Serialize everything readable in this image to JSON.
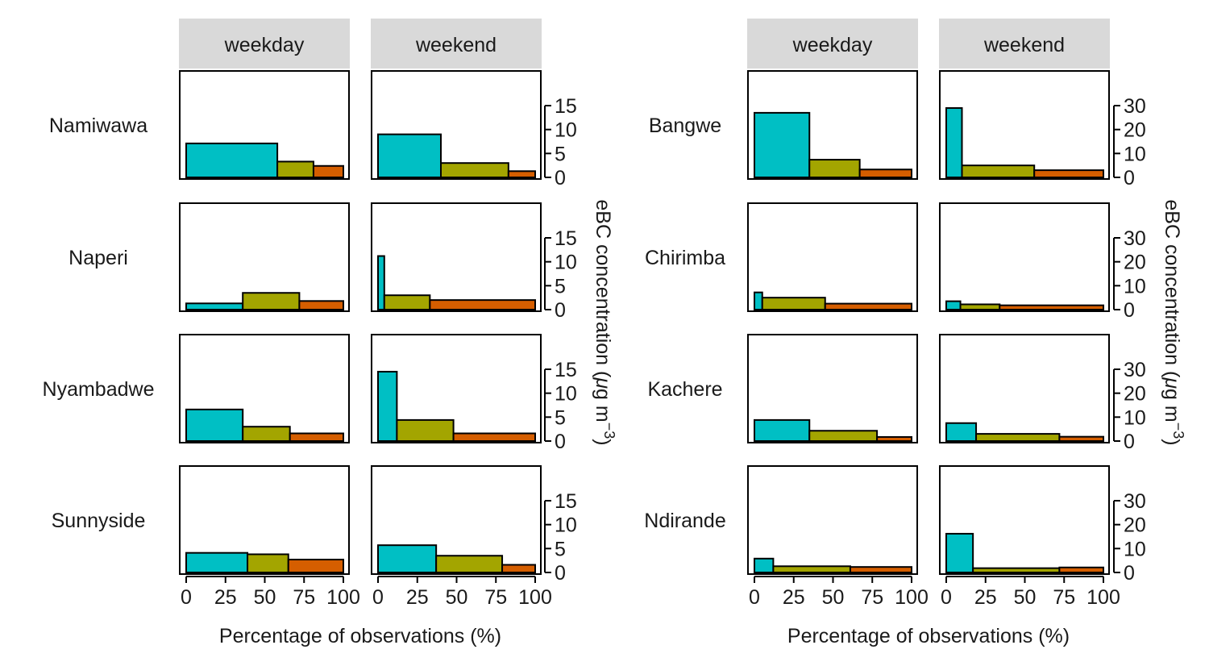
{
  "chart_data": [
    {
      "type": "bar",
      "title": "",
      "xlabel": "Percentage of observations (%)",
      "ylabel": "eBC concentration (µg m⁻³)",
      "ylabel_parts": {
        "main": "eBC concentration (",
        "mu": "μ",
        "rest": "g m",
        "sup": "−3",
        "close": ")"
      },
      "facet_columns": [
        "weekday",
        "weekend"
      ],
      "xlim": [
        0,
        100
      ],
      "x_ticks": [
        "0",
        "25",
        "50",
        "75",
        "100"
      ],
      "ylim": [
        0,
        15
      ],
      "y_ticks": [
        "0",
        "5",
        "10",
        "15"
      ],
      "y_tick_values": [
        0,
        5,
        10,
        15
      ],
      "rows": [
        {
          "name": "Namiwawa",
          "weekday": [
            {
              "width": 58,
              "height": 7.1,
              "color": "#00BFC4"
            },
            {
              "width": 23,
              "height": 3.3,
              "color": "#A3A500"
            },
            {
              "width": 19,
              "height": 2.4,
              "color": "#D55E00"
            }
          ],
          "weekend": [
            {
              "width": 40,
              "height": 9.0,
              "color": "#00BFC4"
            },
            {
              "width": 43,
              "height": 3.0,
              "color": "#A3A500"
            },
            {
              "width": 17,
              "height": 1.3,
              "color": "#D55E00"
            }
          ]
        },
        {
          "name": "Naperi",
          "weekday": [
            {
              "width": 36,
              "height": 1.3,
              "color": "#00BFC4"
            },
            {
              "width": 36,
              "height": 3.5,
              "color": "#A3A500"
            },
            {
              "width": 28,
              "height": 1.8,
              "color": "#D55E00"
            }
          ],
          "weekend": [
            {
              "width": 4,
              "height": 11.2,
              "color": "#00BFC4"
            },
            {
              "width": 29,
              "height": 3.0,
              "color": "#A3A500"
            },
            {
              "width": 67,
              "height": 2.0,
              "color": "#D55E00"
            }
          ]
        },
        {
          "name": "Nyambadwe",
          "weekday": [
            {
              "width": 36,
              "height": 6.6,
              "color": "#00BFC4"
            },
            {
              "width": 30,
              "height": 3.0,
              "color": "#A3A500"
            },
            {
              "width": 34,
              "height": 1.6,
              "color": "#D55E00"
            }
          ],
          "weekend": [
            {
              "width": 12,
              "height": 14.5,
              "color": "#00BFC4"
            },
            {
              "width": 36,
              "height": 4.4,
              "color": "#A3A500"
            },
            {
              "width": 52,
              "height": 1.6,
              "color": "#D55E00"
            }
          ]
        },
        {
          "name": "Sunnyside",
          "weekday": [
            {
              "width": 39,
              "height": 4.1,
              "color": "#00BFC4"
            },
            {
              "width": 26,
              "height": 3.8,
              "color": "#A3A500"
            },
            {
              "width": 35,
              "height": 2.7,
              "color": "#D55E00"
            }
          ],
          "weekend": [
            {
              "width": 37,
              "height": 5.7,
              "color": "#00BFC4"
            },
            {
              "width": 42,
              "height": 3.5,
              "color": "#A3A500"
            },
            {
              "width": 21,
              "height": 1.6,
              "color": "#D55E00"
            }
          ]
        }
      ]
    },
    {
      "type": "bar",
      "title": "",
      "xlabel": "Percentage of observations (%)",
      "ylabel": "eBC concentration (µg m⁻³)",
      "ylabel_parts": {
        "main": "eBC concentration (",
        "mu": "μ",
        "rest": "g m",
        "sup": "−3",
        "close": ")"
      },
      "facet_columns": [
        "weekday",
        "weekend"
      ],
      "xlim": [
        0,
        100
      ],
      "x_ticks": [
        "0",
        "25",
        "50",
        "75",
        "100"
      ],
      "ylim": [
        0,
        30
      ],
      "y_ticks": [
        "0",
        "10",
        "20",
        "30"
      ],
      "y_tick_values": [
        0,
        10,
        20,
        30
      ],
      "rows": [
        {
          "name": "Bangwe",
          "weekday": [
            {
              "width": 35,
              "height": 27.0,
              "color": "#00BFC4"
            },
            {
              "width": 32,
              "height": 7.4,
              "color": "#A3A500"
            },
            {
              "width": 33,
              "height": 3.3,
              "color": "#D55E00"
            }
          ],
          "weekend": [
            {
              "width": 10,
              "height": 29.0,
              "color": "#00BFC4"
            },
            {
              "width": 46,
              "height": 5.0,
              "color": "#A3A500"
            },
            {
              "width": 44,
              "height": 3.0,
              "color": "#D55E00"
            }
          ]
        },
        {
          "name": "Chirimba",
          "weekday": [
            {
              "width": 5,
              "height": 7.2,
              "color": "#00BFC4"
            },
            {
              "width": 40,
              "height": 5.0,
              "color": "#A3A500"
            },
            {
              "width": 55,
              "height": 2.5,
              "color": "#D55E00"
            }
          ],
          "weekend": [
            {
              "width": 9,
              "height": 3.5,
              "color": "#00BFC4"
            },
            {
              "width": 25,
              "height": 2.2,
              "color": "#A3A500"
            },
            {
              "width": 66,
              "height": 1.8,
              "color": "#D55E00"
            }
          ]
        },
        {
          "name": "Kachere",
          "weekday": [
            {
              "width": 35,
              "height": 8.8,
              "color": "#00BFC4"
            },
            {
              "width": 43,
              "height": 4.3,
              "color": "#A3A500"
            },
            {
              "width": 22,
              "height": 1.7,
              "color": "#D55E00"
            }
          ],
          "weekend": [
            {
              "width": 19,
              "height": 7.5,
              "color": "#00BFC4"
            },
            {
              "width": 53,
              "height": 3.0,
              "color": "#A3A500"
            },
            {
              "width": 28,
              "height": 1.8,
              "color": "#D55E00"
            }
          ]
        },
        {
          "name": "Ndirande",
          "weekday": [
            {
              "width": 12,
              "height": 5.8,
              "color": "#00BFC4"
            },
            {
              "width": 49,
              "height": 2.6,
              "color": "#A3A500"
            },
            {
              "width": 39,
              "height": 2.3,
              "color": "#D55E00"
            }
          ],
          "weekend": [
            {
              "width": 17,
              "height": 16.2,
              "color": "#00BFC4"
            },
            {
              "width": 55,
              "height": 1.8,
              "color": "#A3A500"
            },
            {
              "width": 28,
              "height": 2.1,
              "color": "#D55E00"
            }
          ]
        }
      ]
    }
  ],
  "colors": {
    "strip_background": "#D9D9D9",
    "bar_outline": "#000000",
    "panel_border": "#000000"
  }
}
